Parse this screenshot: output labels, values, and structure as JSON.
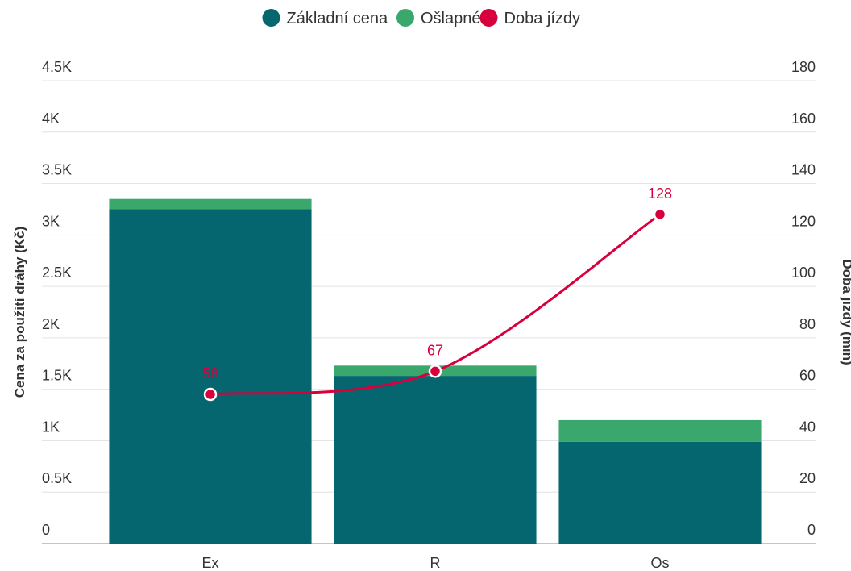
{
  "chart_data": {
    "type": "bar-line",
    "categories": [
      "Ex",
      "R",
      "Os"
    ],
    "series": [
      {
        "name": "Základní cena",
        "color": "#05666f",
        "values": [
          3250,
          1630,
          990
        ]
      },
      {
        "name": "Ošlapné",
        "color": "#3aa76d",
        "values": [
          100,
          100,
          210
        ]
      },
      {
        "name": "Doba jízdy",
        "color": "#d8003c",
        "values": [
          58,
          67,
          128
        ],
        "axis": "y2"
      }
    ],
    "ylabel": "Cena za použití dráhy (Kč)",
    "y2label": "Doba jízdy (min)",
    "ylim": [
      0,
      4500
    ],
    "yticks": [
      0,
      {
        "value": 500,
        "label": "0.5K"
      },
      {
        "value": 1000,
        "label": "1K"
      },
      {
        "value": 1500,
        "label": "1.5K"
      },
      {
        "value": 2000,
        "label": "2K"
      },
      {
        "value": 2500,
        "label": "2.5K"
      },
      {
        "value": 3000,
        "label": "3K"
      },
      {
        "value": 3500,
        "label": "3.5K"
      },
      {
        "value": 4000,
        "label": "4K"
      },
      {
        "value": 4500,
        "label": "4.5K"
      }
    ],
    "y2lim": [
      0,
      180
    ],
    "y2ticks": [
      0,
      20,
      40,
      60,
      80,
      100,
      120,
      140,
      160,
      180
    ],
    "grid": true,
    "legend": "top"
  }
}
